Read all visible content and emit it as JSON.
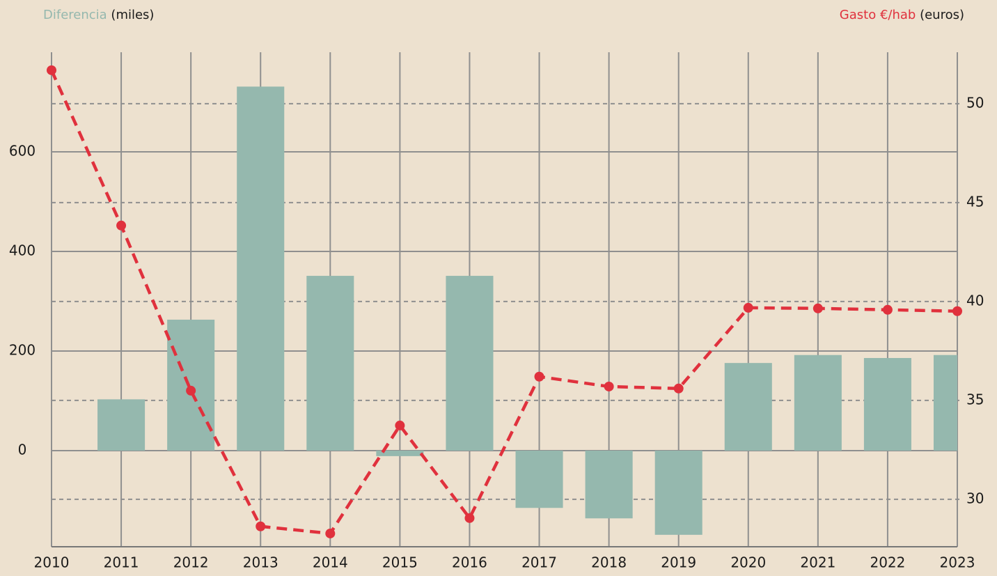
{
  "chart_data": {
    "type": "combo",
    "x": [
      2010,
      2011,
      2012,
      2013,
      2014,
      2015,
      2016,
      2017,
      2018,
      2019,
      2020,
      2021,
      2022,
      2023
    ],
    "xlim": [
      2010,
      2023
    ],
    "xticks": [
      2010,
      2011,
      2012,
      2013,
      2014,
      2015,
      2016,
      2017,
      2018,
      2019,
      2020,
      2021,
      2022,
      2023
    ],
    "y_label": "(miles)",
    "y2_label": "(euros)",
    "ylim": [
      -193,
      800
    ],
    "yticks": [
      0,
      200,
      400,
      600
    ],
    "y2lim": [
      27.6,
      52.6
    ],
    "y2ticks": [
      30,
      35,
      40,
      45,
      50
    ],
    "grid": true,
    "series": [
      {
        "name": "Diferencia",
        "type": "bar",
        "color": "#95b8ae",
        "axis": "y",
        "values": [
          null,
          103,
          263,
          731,
          351,
          -11,
          351,
          -115,
          -136,
          -169,
          176,
          192,
          186,
          192
        ]
      },
      {
        "name": "Gasto €/hab",
        "type": "line",
        "color": "#e0313d",
        "axis": "y2",
        "values": [
          51.69,
          43.84,
          35.49,
          28.63,
          28.27,
          33.73,
          29.05,
          36.2,
          35.7,
          35.6,
          39.68,
          39.65,
          39.58,
          39.51
        ]
      }
    ]
  }
}
